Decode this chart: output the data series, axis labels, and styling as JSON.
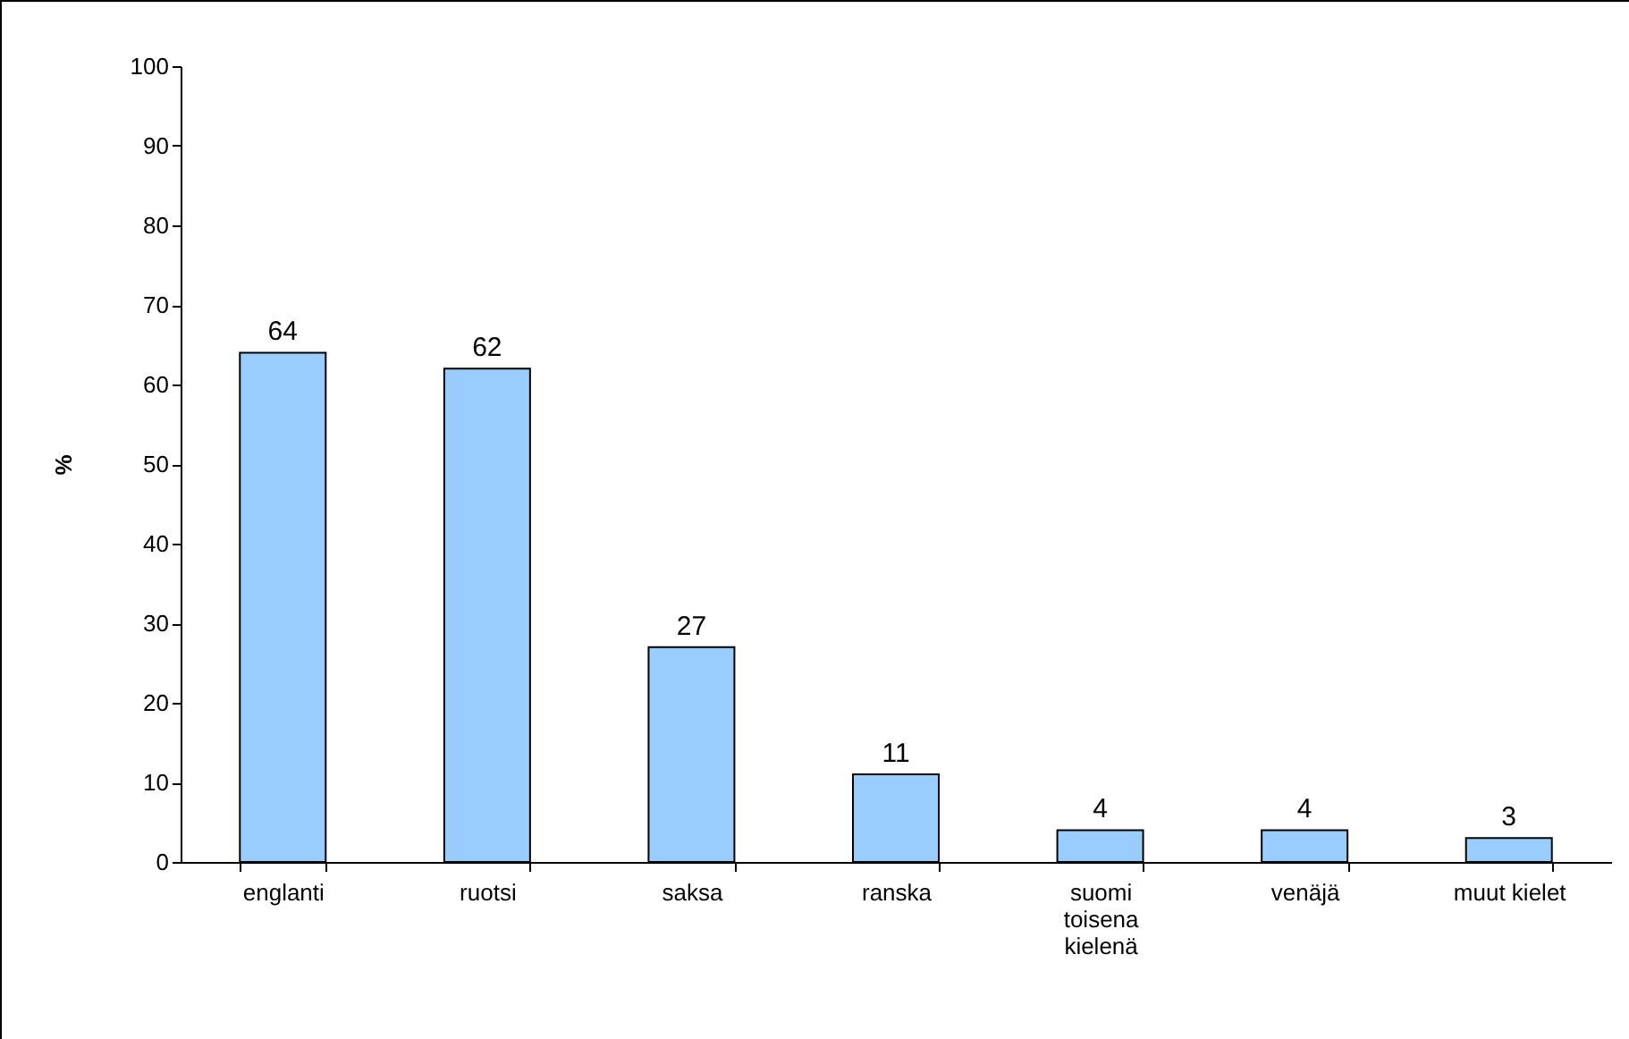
{
  "chart_data": {
    "type": "bar",
    "ylabel": "%",
    "categories": [
      "englanti",
      "ruotsi",
      "saksa",
      "ranska",
      "suomi toisena kielenä",
      "venäjä",
      "muut kielet"
    ],
    "values": [
      64,
      62,
      27,
      11,
      4,
      4,
      3
    ],
    "color": "#99ccff",
    "ylim": [
      0,
      100
    ],
    "yticks": [
      0,
      10,
      20,
      30,
      40,
      50,
      60,
      70,
      80,
      90,
      100
    ],
    "grid": false,
    "data_labels": true
  }
}
